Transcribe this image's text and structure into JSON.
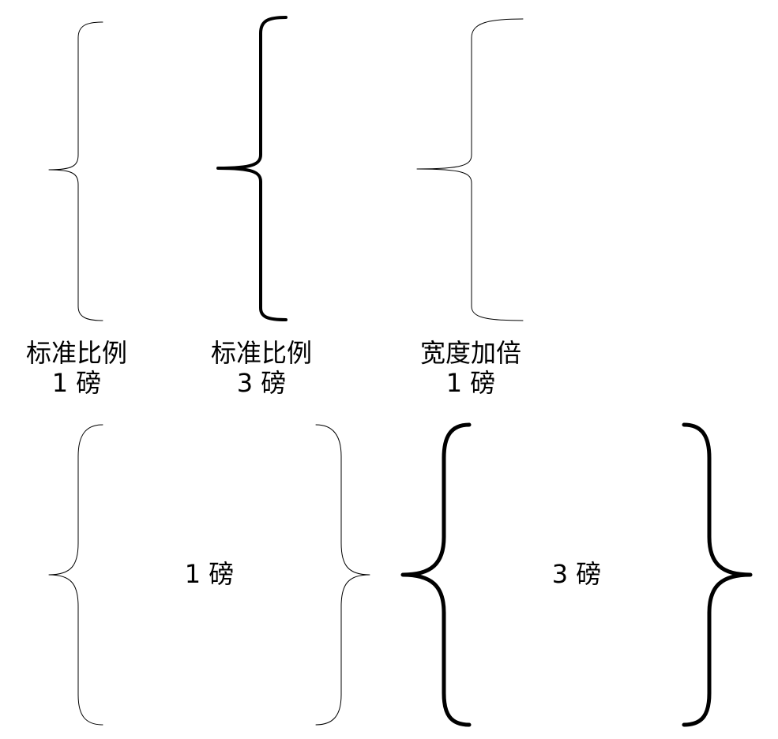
{
  "labels": {
    "sample_1": {
      "line1": "标准比例",
      "line2": "1 磅"
    },
    "sample_2": {
      "line1": "标准比例",
      "line2": "3 磅"
    },
    "sample_3": {
      "line1": "宽度加倍",
      "line2": "1 磅"
    }
  },
  "pairs": {
    "thin": {
      "label": "1 磅"
    },
    "thick": {
      "label": "3 磅"
    }
  },
  "colors": {
    "stroke": "#000000",
    "background": "#ffffff"
  }
}
